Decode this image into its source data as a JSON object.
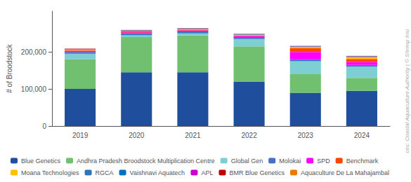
{
  "chart_data": {
    "type": "bar",
    "stacked": true,
    "categories": [
      "2019",
      "2020",
      "2021",
      "2022",
      "2023",
      "2024"
    ],
    "series": [
      {
        "name": "Blue Genetics",
        "color": "#1f4e9c",
        "values": [
          100000,
          145000,
          145000,
          120000,
          90000,
          95000
        ]
      },
      {
        "name": "Andhra Pradesh Broodstock Multiplication Centre",
        "color": "#70c070",
        "values": [
          80000,
          95000,
          100000,
          95000,
          50000,
          35000
        ]
      },
      {
        "name": "Global Gen",
        "color": "#7ecfd4",
        "values": [
          15000,
          5000,
          5000,
          20000,
          35000,
          30000
        ]
      },
      {
        "name": "Molokai",
        "color": "#4472c4",
        "values": [
          5000,
          5000,
          5000,
          5000,
          5000,
          5000
        ]
      },
      {
        "name": "SPD",
        "color": "#ff00ff",
        "values": [
          3000,
          3000,
          3000,
          3000,
          20000,
          8000
        ]
      },
      {
        "name": "Benchmark",
        "color": "#ff4500",
        "values": [
          2000,
          2000,
          2000,
          2000,
          10000,
          8000
        ]
      },
      {
        "name": "Moana Technologies",
        "color": "#ffc000",
        "values": [
          1000,
          1000,
          1000,
          1000,
          3000,
          5000
        ]
      },
      {
        "name": "RGCA",
        "color": "#2e75b6",
        "values": [
          1000,
          1000,
          1000,
          1000,
          1000,
          1000
        ]
      },
      {
        "name": "Vaishnavi Aquatech",
        "color": "#0070c0",
        "values": [
          1000,
          1000,
          1000,
          1000,
          1000,
          1000
        ]
      },
      {
        "name": "APL",
        "color": "#cc00cc",
        "values": [
          500,
          500,
          500,
          500,
          500,
          500
        ]
      },
      {
        "name": "BMR Blue Genetics",
        "color": "#c00000",
        "values": [
          500,
          500,
          500,
          500,
          500,
          500
        ]
      },
      {
        "name": "Aquaculture De La Mahajambal",
        "color": "#e97b00",
        "values": [
          500,
          500,
          500,
          500,
          500,
          500
        ]
      }
    ],
    "ylabel": "# of Broodstock",
    "ylim": [
      0,
      310000
    ],
    "yticks": [
      0,
      {
        "value": 100000,
        "label": "100,000"
      },
      {
        "value": 200000,
        "label": "200,000"
      }
    ],
    "grid": false,
    "legend": "bottom",
    "annotations": [
      "ces: Coastal Aquaculture Authority | © Shrimp Insi"
    ]
  }
}
